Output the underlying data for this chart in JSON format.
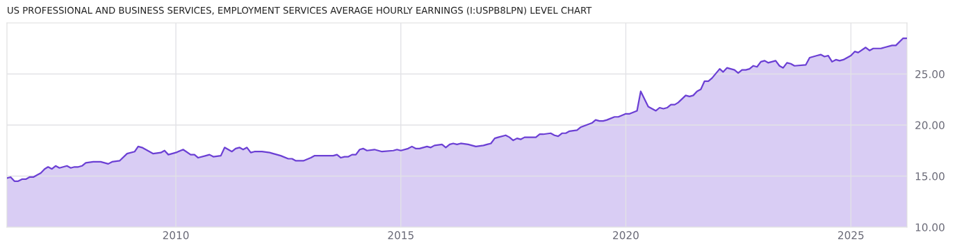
{
  "chart_data": {
    "type": "area",
    "title": "US PROFESSIONAL AND BUSINESS SERVICES, EMPLOYMENT SERVICES AVERAGE HOURLY EARNINGS (I:USPB8LPN) LEVEL CHART",
    "x": [
      "2006-04",
      "2006-05",
      "2006-06",
      "2006-07",
      "2006-08",
      "2006-09",
      "2006-10",
      "2006-11",
      "2006-12",
      "2007-01",
      "2007-02",
      "2007-03",
      "2007-04",
      "2007-05",
      "2007-06",
      "2007-08",
      "2007-09",
      "2007-10",
      "2007-11",
      "2007-12",
      "2008-01",
      "2008-03",
      "2008-05",
      "2008-07",
      "2008-08",
      "2008-10",
      "2008-12",
      "2009-02",
      "2009-03",
      "2009-04",
      "2009-06",
      "2009-07",
      "2009-09",
      "2009-10",
      "2009-11",
      "2010-01",
      "2010-03",
      "2010-05",
      "2010-06",
      "2010-07",
      "2010-09",
      "2010-10",
      "2010-11",
      "2011-01",
      "2011-02",
      "2011-04",
      "2011-05",
      "2011-06",
      "2011-07",
      "2011-08",
      "2011-09",
      "2011-10",
      "2011-12",
      "2012-02",
      "2012-03",
      "2012-04",
      "2012-05",
      "2012-07",
      "2012-08",
      "2012-09",
      "2012-11",
      "2013-01",
      "2013-02",
      "2013-03",
      "2013-07",
      "2013-08",
      "2013-09",
      "2013-10",
      "2013-11",
      "2013-12",
      "2014-01",
      "2014-02",
      "2014-03",
      "2014-04",
      "2014-06",
      "2014-08",
      "2014-11",
      "2014-12",
      "2015-01",
      "2015-03",
      "2015-04",
      "2015-05",
      "2015-06",
      "2015-08",
      "2015-09",
      "2015-10",
      "2015-12",
      "2016-01",
      "2016-02",
      "2016-03",
      "2016-04",
      "2016-05",
      "2016-07",
      "2016-08",
      "2016-09",
      "2016-11",
      "2016-12",
      "2017-01",
      "2017-02",
      "2017-03",
      "2017-05",
      "2017-06",
      "2017-07",
      "2017-08",
      "2017-09",
      "2017-10",
      "2017-12",
      "2018-01",
      "2018-02",
      "2018-03",
      "2018-05",
      "2018-06",
      "2018-07",
      "2018-08",
      "2018-09",
      "2018-10",
      "2018-12",
      "2019-01",
      "2019-04",
      "2019-05",
      "2019-06",
      "2019-07",
      "2019-08",
      "2019-10",
      "2019-11",
      "2020-01",
      "2020-02",
      "2020-04",
      "2020-05",
      "2020-07",
      "2020-09",
      "2020-10",
      "2020-11",
      "2020-12",
      "2021-01",
      "2021-02",
      "2021-03",
      "2021-05",
      "2021-06",
      "2021-07",
      "2021-08",
      "2021-09",
      "2021-10",
      "2021-11",
      "2021-12",
      "2022-02",
      "2022-03",
      "2022-04",
      "2022-06",
      "2022-07",
      "2022-08",
      "2022-09",
      "2022-10",
      "2022-11",
      "2022-12",
      "2023-01",
      "2023-02",
      "2023-03",
      "2023-05",
      "2023-06",
      "2023-07",
      "2023-08",
      "2023-09",
      "2023-10",
      "2024-01",
      "2024-02",
      "2024-04",
      "2024-05",
      "2024-06",
      "2024-07",
      "2024-08",
      "2024-09",
      "2024-10",
      "2024-11",
      "2025-01",
      "2025-02",
      "2025-03",
      "2025-05",
      "2025-06",
      "2025-07",
      "2025-08",
      "2025-09",
      "2025-10",
      "2025-12",
      "2026-01",
      "2026-03",
      "2026-04"
    ],
    "series": [
      {
        "color": "#6b3fd4",
        "values": [
          14.8,
          14.9,
          14.5,
          14.5,
          14.7,
          14.7,
          14.9,
          14.9,
          15.1,
          15.3,
          15.7,
          15.9,
          15.7,
          16.0,
          15.8,
          16.0,
          15.8,
          15.9,
          15.9,
          16.0,
          16.3,
          16.4,
          16.4,
          16.2,
          16.4,
          16.5,
          17.2,
          17.4,
          17.9,
          17.8,
          17.4,
          17.2,
          17.3,
          17.5,
          17.1,
          17.3,
          17.6,
          17.1,
          17.1,
          16.8,
          17.0,
          17.1,
          16.9,
          17.0,
          17.8,
          17.4,
          17.7,
          17.8,
          17.6,
          17.8,
          17.3,
          17.4,
          17.4,
          17.3,
          17.2,
          17.1,
          17.0,
          16.7,
          16.7,
          16.5,
          16.5,
          16.8,
          17.0,
          17.0,
          17.0,
          17.1,
          16.8,
          16.9,
          16.9,
          17.1,
          17.1,
          17.6,
          17.7,
          17.5,
          17.6,
          17.4,
          17.5,
          17.6,
          17.5,
          17.7,
          17.9,
          17.7,
          17.7,
          17.9,
          17.8,
          18.0,
          18.1,
          17.8,
          18.1,
          18.2,
          18.1,
          18.2,
          18.1,
          18.0,
          17.9,
          18.0,
          18.1,
          18.2,
          18.7,
          18.8,
          19.0,
          18.8,
          18.5,
          18.7,
          18.6,
          18.8,
          18.8,
          18.8,
          19.1,
          19.1,
          19.2,
          19.0,
          18.9,
          19.2,
          19.2,
          19.4,
          19.5,
          19.8,
          20.2,
          20.5,
          20.4,
          20.4,
          20.5,
          20.8,
          20.8,
          21.1,
          21.1,
          21.4,
          23.3,
          21.8,
          21.4,
          21.7,
          21.6,
          21.7,
          22.0,
          22.0,
          22.2,
          22.9,
          22.8,
          22.9,
          23.3,
          23.5,
          24.3,
          24.3,
          24.6,
          25.5,
          25.2,
          25.6,
          25.4,
          25.1,
          25.4,
          25.4,
          25.5,
          25.8,
          25.7,
          26.2,
          26.3,
          26.1,
          26.3,
          25.8,
          25.6,
          26.1,
          26.0,
          25.8,
          25.9,
          26.6,
          26.8,
          26.9,
          26.7,
          26.8,
          26.2,
          26.4,
          26.3,
          26.4,
          26.8,
          27.2,
          27.1,
          27.6,
          27.3,
          27.5,
          27.5,
          27.5,
          27.6,
          27.8,
          27.8,
          28.5,
          28.5
        ]
      }
    ],
    "xlim": [
      "2006-04",
      "2026-04"
    ],
    "ylim": [
      10,
      30
    ],
    "xticks": [
      {
        "value": "2010-01",
        "label": "2010"
      },
      {
        "value": "2015-01",
        "label": "2015"
      },
      {
        "value": "2020-01",
        "label": "2020"
      },
      {
        "value": "2025-01",
        "label": "2025"
      }
    ],
    "yticks": [
      {
        "value": 10,
        "label": "10.00"
      },
      {
        "value": 15,
        "label": "15.00"
      },
      {
        "value": 20,
        "label": "20.00"
      },
      {
        "value": 25,
        "label": "25.00"
      }
    ],
    "grid": true
  }
}
